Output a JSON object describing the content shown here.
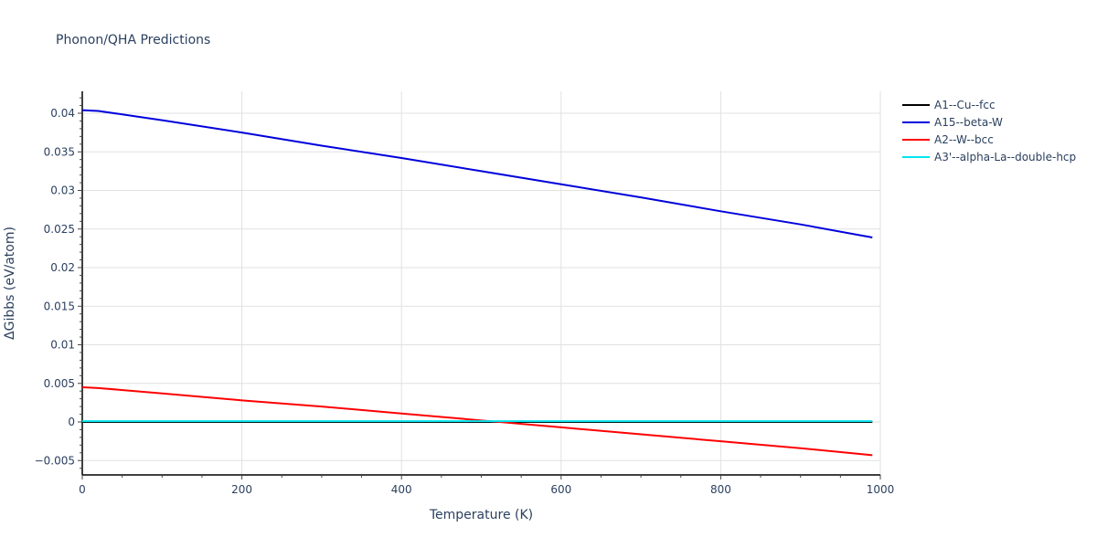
{
  "chart_data": {
    "type": "line",
    "title": "Phonon/QHA Predictions",
    "xlabel": "Temperature (K)",
    "ylabel": "ΔGibbs (eV/atom)",
    "xlim": [
      0,
      1000
    ],
    "ylim": [
      -0.0068,
      0.0428
    ],
    "x_ticks": [
      0,
      200,
      400,
      600,
      800,
      1000
    ],
    "y_ticks": [
      -0.005,
      0,
      0.005,
      0.01,
      0.015,
      0.02,
      0.025,
      0.03,
      0.035,
      0.04
    ],
    "y_tick_labels": [
      "−0.005",
      "0",
      "0.005",
      "0.01",
      "0.015",
      "0.02",
      "0.025",
      "0.03",
      "0.035",
      "0.04"
    ],
    "x_tick_labels": [
      "0",
      "200",
      "400",
      "600",
      "800",
      "1000"
    ],
    "grid": true,
    "legend_position": "right",
    "x": [
      0,
      20,
      100,
      200,
      300,
      400,
      500,
      600,
      700,
      800,
      900,
      990
    ],
    "series": [
      {
        "name": "A1--Cu--fcc",
        "color": "#000000",
        "values": [
          0,
          0,
          0,
          0,
          0,
          0,
          0,
          0,
          0,
          0,
          0,
          0
        ]
      },
      {
        "name": "A15--beta-W",
        "color": "#0000dd",
        "values": [
          0.0404,
          0.0403,
          0.0391,
          0.0375,
          0.0358,
          0.0342,
          0.0325,
          0.0308,
          0.0291,
          0.0273,
          0.0256,
          0.0239
        ]
      },
      {
        "name": "A2--W--bcc",
        "color": "#ff0000",
        "values": [
          0.0045,
          0.0044,
          0.0037,
          0.0028,
          0.002,
          0.0011,
          0.0002,
          -0.0007,
          -0.0016,
          -0.0025,
          -0.0034,
          -0.0043
        ]
      },
      {
        "name": "A3'--alpha-La--double-hcp",
        "color": "#00e5ee",
        "values": [
          0.0001,
          0.0001,
          0.0001,
          0.0001,
          0.0001,
          0.0001,
          0.0001,
          0.0001,
          0.0001,
          0.0001,
          0.0001,
          0.0001
        ]
      }
    ]
  }
}
